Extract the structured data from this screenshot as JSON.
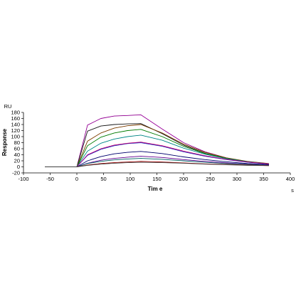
{
  "chart_data": {
    "type": "line",
    "title": "",
    "xlabel": "Tim e",
    "ylabel": "Response",
    "x_unit": "s",
    "y_unit": "RU",
    "xlim": [
      -100,
      400
    ],
    "ylim": [
      -20,
      180
    ],
    "x_ticks": [
      "-100",
      "-50",
      "0",
      "50",
      "100",
      "150",
      "200",
      "250",
      "300",
      "350",
      "400"
    ],
    "y_ticks": [
      "-20",
      "0",
      "20",
      "40",
      "60",
      "80",
      "100",
      "120",
      "140",
      "160",
      "180"
    ],
    "grid": false,
    "legend": "none",
    "baseline": {
      "x": [
        -60,
        0
      ],
      "y": 0
    },
    "association_end": 120,
    "dissociation_end": 360,
    "series": [
      {
        "color": "#c000c0",
        "values": [
          0,
          138,
          160,
          168,
          170,
          172,
          125,
          80,
          50,
          30,
          17,
          10
        ],
        "plateau": 172
      },
      {
        "color": "#202020",
        "values": [
          0,
          118,
          135,
          140,
          142,
          143,
          110,
          72,
          45,
          28,
          16,
          9
        ],
        "plateau": 143
      },
      {
        "color": "#a05000",
        "values": [
          0,
          85,
          112,
          128,
          136,
          140,
          112,
          75,
          48,
          30,
          18,
          11
        ],
        "plateau": 140
      },
      {
        "color": "#00a000",
        "values": [
          0,
          70,
          98,
          112,
          120,
          124,
          100,
          68,
          44,
          28,
          17,
          10
        ],
        "plateau": 124
      },
      {
        "color": "#00b0b0",
        "values": [
          0,
          52,
          78,
          92,
          100,
          105,
          88,
          62,
          42,
          27,
          17,
          10
        ],
        "plateau": 105
      },
      {
        "color": "#2040ff",
        "values": [
          0,
          38,
          58,
          70,
          77,
          80,
          68,
          50,
          35,
          24,
          15,
          9
        ],
        "plateau": 80
      },
      {
        "color": "#ff00a0",
        "values": [
          0,
          40,
          60,
          72,
          78,
          82,
          70,
          52,
          37,
          25,
          16,
          10
        ],
        "plateau": 82
      },
      {
        "color": "#000090",
        "values": [
          0,
          20,
          34,
          43,
          48,
          51,
          44,
          33,
          24,
          17,
          11,
          7
        ],
        "plateau": 51
      },
      {
        "color": "#8000c0",
        "values": [
          0,
          12,
          22,
          28,
          32,
          35,
          31,
          24,
          18,
          13,
          9,
          6
        ],
        "plateau": 35
      },
      {
        "color": "#008080",
        "values": [
          0,
          11,
          18,
          23,
          26,
          28,
          25,
          20,
          15,
          11,
          8,
          5
        ],
        "plateau": 28
      },
      {
        "color": "#cc0000",
        "values": [
          0,
          6,
          11,
          14,
          16,
          18,
          16,
          13,
          10,
          8,
          6,
          4
        ],
        "plateau": 18
      },
      {
        "color": "#606060",
        "values": [
          0,
          5,
          9,
          12,
          14,
          15,
          14,
          12,
          9,
          7,
          5,
          4
        ],
        "plateau": 15
      }
    ],
    "series_x": [
      0,
      20,
      45,
      70,
      95,
      120,
      160,
      200,
      240,
      280,
      320,
      360
    ]
  }
}
